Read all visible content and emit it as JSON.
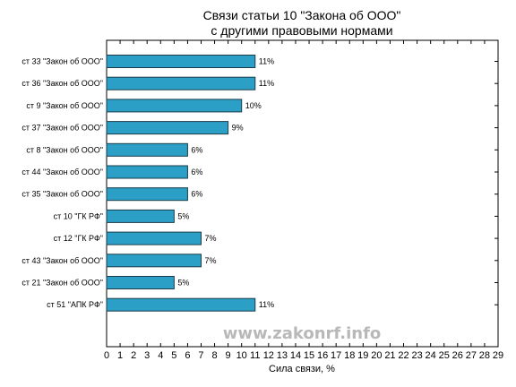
{
  "chart_data": {
    "type": "bar",
    "orientation": "horizontal",
    "title_lines": [
      "Связи статьи 10 \"Закона об ООО\"",
      "с другими правовыми нормами"
    ],
    "xlabel": "Сила связи, %",
    "ylabel": "",
    "categories": [
      "ст 33 \"Закон об ООО\"",
      "ст 36 \"Закон об ООО\"",
      "ст 9 \"Закон об ООО\"",
      "ст 37 \"Закон об ООО\"",
      "ст 8 \"Закон об ООО\"",
      "ст 44 \"Закон об ООО\"",
      "ст 35 \"Закон об ООО\"",
      "ст 10 \"ГК РФ\"",
      "ст 12 \"ГК РФ\"",
      "ст 43 \"Закон об ООО\"",
      "ст 21 \"Закон об ООО\"",
      "ст 51 \"АПК РФ\""
    ],
    "values": [
      11,
      11,
      10,
      9,
      6,
      6,
      6,
      5,
      7,
      7,
      5,
      11
    ],
    "value_labels": [
      "11%",
      "11%",
      "10%",
      "9%",
      "6%",
      "6%",
      "6%",
      "5%",
      "7%",
      "7%",
      "5%",
      "11%"
    ],
    "xlim": [
      0,
      29
    ],
    "x_ticks": [
      0,
      1,
      2,
      3,
      4,
      5,
      6,
      7,
      8,
      9,
      10,
      11,
      12,
      13,
      14,
      15,
      16,
      17,
      18,
      19,
      20,
      21,
      22,
      23,
      24,
      25,
      26,
      27,
      28,
      29
    ],
    "grid": false,
    "bar_color": "#2b9fc6",
    "bar_edge_color": "#1a3c4a",
    "watermark": "www.zakonrf.info"
  }
}
